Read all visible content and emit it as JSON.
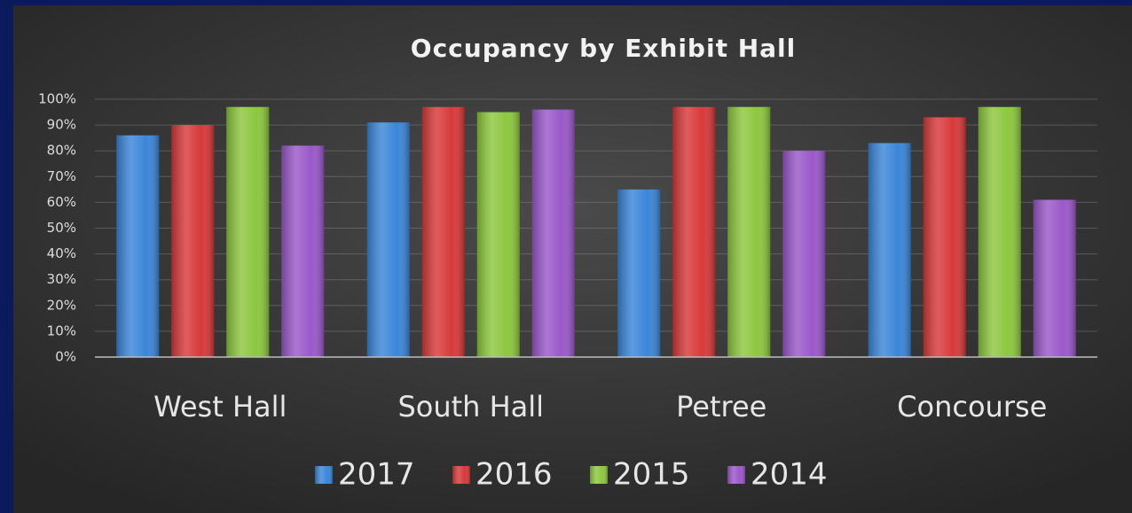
{
  "chart_data": {
    "type": "bar",
    "title": "Occupancy by Exhibit Hall",
    "categories": [
      "West Hall",
      "South Hall",
      "Petree",
      "Concourse"
    ],
    "series": [
      {
        "name": "2017",
        "color": "#3b86d9",
        "values": [
          86,
          91,
          65,
          83
        ]
      },
      {
        "name": "2016",
        "color": "#d8393a",
        "values": [
          90,
          97,
          97,
          93
        ]
      },
      {
        "name": "2015",
        "color": "#8dc73f",
        "values": [
          97,
          95,
          97,
          97
        ]
      },
      {
        "name": "2014",
        "color": "#9a58c9",
        "values": [
          82,
          96,
          80,
          61
        ]
      }
    ],
    "ylim": [
      0,
      100
    ],
    "yticks": [
      {
        "value": 0,
        "label": "0%"
      },
      {
        "value": 10,
        "label": "10%"
      },
      {
        "value": 20,
        "label": "20%"
      },
      {
        "value": 30,
        "label": "30%"
      },
      {
        "value": 40,
        "label": "40%"
      },
      {
        "value": 50,
        "label": "50%"
      },
      {
        "value": 60,
        "label": "60%"
      },
      {
        "value": 70,
        "label": "70%"
      },
      {
        "value": 80,
        "label": "80%"
      },
      {
        "value": 90,
        "label": "90%"
      },
      {
        "value": 100,
        "label": "100%"
      }
    ],
    "grid": true,
    "legend": "bottom"
  }
}
